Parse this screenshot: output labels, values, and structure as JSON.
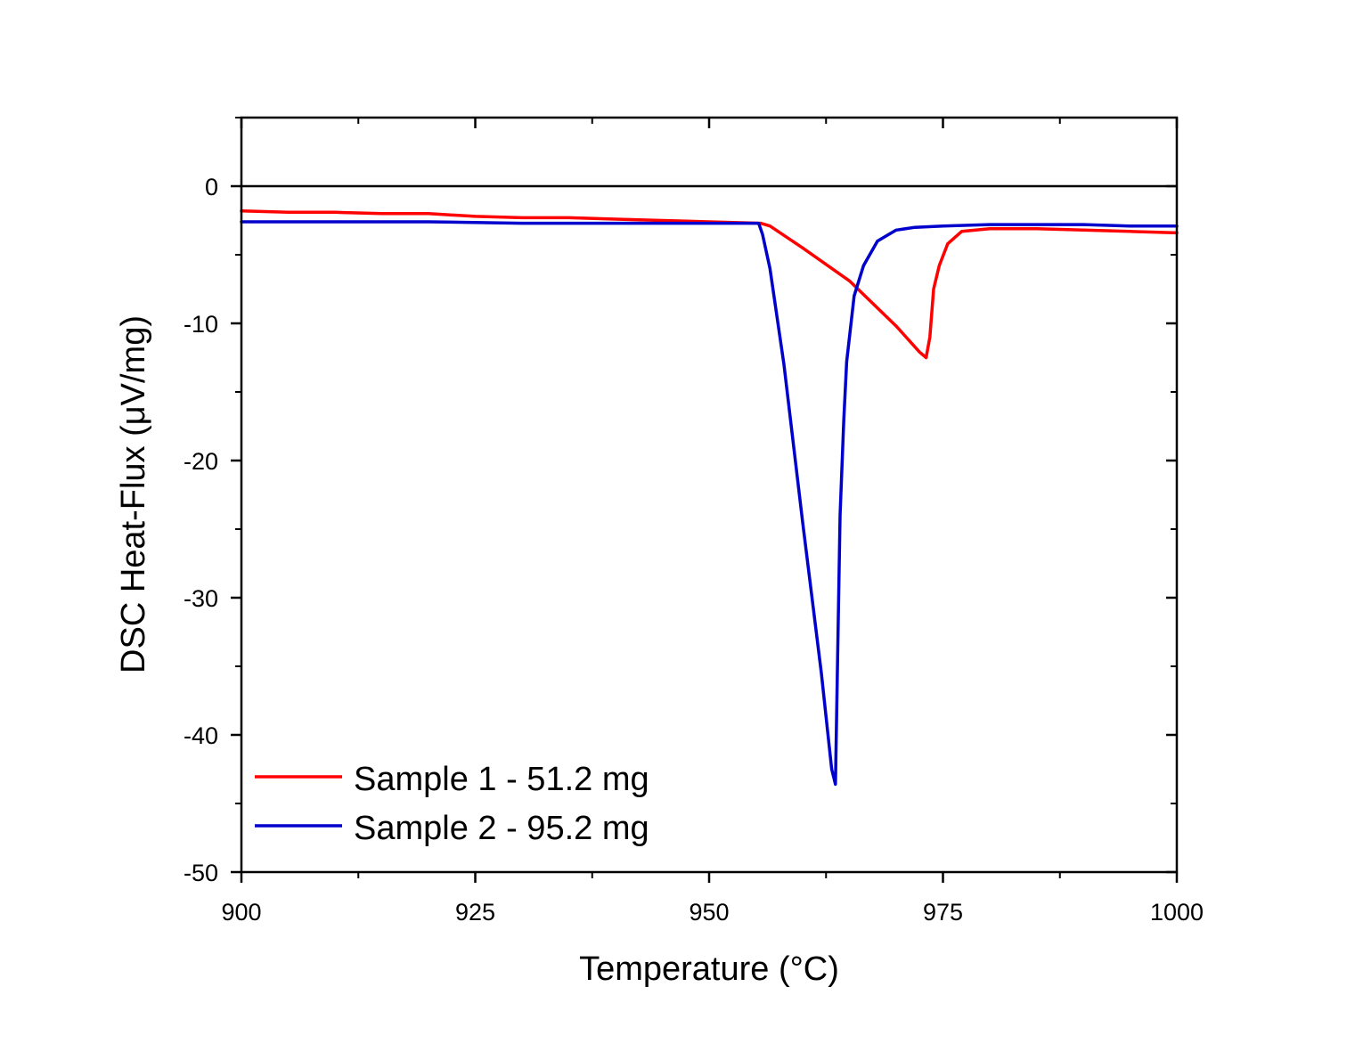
{
  "chart_data": {
    "type": "line",
    "title": "",
    "xlabel": "Temperature (°C)",
    "ylabel": "DSC Heat-Flux (μV/mg)",
    "xlim": [
      900,
      1000
    ],
    "ylim": [
      -50,
      5
    ],
    "x_ticks": [
      900,
      925,
      950,
      975,
      1000
    ],
    "x_tick_labels": [
      "900",
      "925",
      "950",
      "975",
      "1000"
    ],
    "x_minor_step": 12.5,
    "y_ticks": [
      0,
      -10,
      -20,
      -30,
      -40,
      -50
    ],
    "y_tick_labels": [
      "0",
      "-10",
      "-20",
      "-30",
      "-40",
      "-50"
    ],
    "y_minor_step": 5,
    "grid": false,
    "reference_line_y": 0,
    "legend_position": "bottom-left",
    "series": [
      {
        "name": "Sample 1 - 51.2 mg",
        "color": "#ff0000",
        "points": [
          [
            900,
            -1.8
          ],
          [
            905,
            -1.9
          ],
          [
            910,
            -1.9
          ],
          [
            915,
            -2.0
          ],
          [
            920,
            -2.0
          ],
          [
            925,
            -2.2
          ],
          [
            930,
            -2.3
          ],
          [
            935,
            -2.3
          ],
          [
            940,
            -2.4
          ],
          [
            945,
            -2.5
          ],
          [
            950,
            -2.6
          ],
          [
            955.5,
            -2.7
          ],
          [
            956.5,
            -2.9
          ],
          [
            960,
            -4.5
          ],
          [
            965,
            -6.9
          ],
          [
            970,
            -10.2
          ],
          [
            972.5,
            -12.1
          ],
          [
            973.2,
            -12.5
          ],
          [
            973.6,
            -11.0
          ],
          [
            974,
            -7.5
          ],
          [
            974.6,
            -5.8
          ],
          [
            975.5,
            -4.2
          ],
          [
            977,
            -3.3
          ],
          [
            980,
            -3.1
          ],
          [
            985,
            -3.1
          ],
          [
            990,
            -3.2
          ],
          [
            995,
            -3.3
          ],
          [
            1000,
            -3.4
          ]
        ]
      },
      {
        "name": "Sample 2 - 95.2 mg",
        "color": "#0000cc",
        "points": [
          [
            900,
            -2.6
          ],
          [
            910,
            -2.6
          ],
          [
            920,
            -2.6
          ],
          [
            930,
            -2.7
          ],
          [
            940,
            -2.7
          ],
          [
            950,
            -2.7
          ],
          [
            955.3,
            -2.7
          ],
          [
            955.7,
            -3.5
          ],
          [
            956.5,
            -6.0
          ],
          [
            958,
            -13.0
          ],
          [
            960,
            -24.5
          ],
          [
            962,
            -35.5
          ],
          [
            963.1,
            -42.5
          ],
          [
            963.5,
            -43.6
          ],
          [
            964,
            -24.0
          ],
          [
            964.4,
            -17.0
          ],
          [
            964.7,
            -12.8
          ],
          [
            965.5,
            -8.0
          ],
          [
            966.5,
            -5.8
          ],
          [
            968,
            -4.0
          ],
          [
            970,
            -3.2
          ],
          [
            972,
            -3.0
          ],
          [
            975,
            -2.9
          ],
          [
            980,
            -2.8
          ],
          [
            985,
            -2.8
          ],
          [
            990,
            -2.8
          ],
          [
            995,
            -2.9
          ],
          [
            1000,
            -2.9
          ]
        ]
      }
    ]
  }
}
